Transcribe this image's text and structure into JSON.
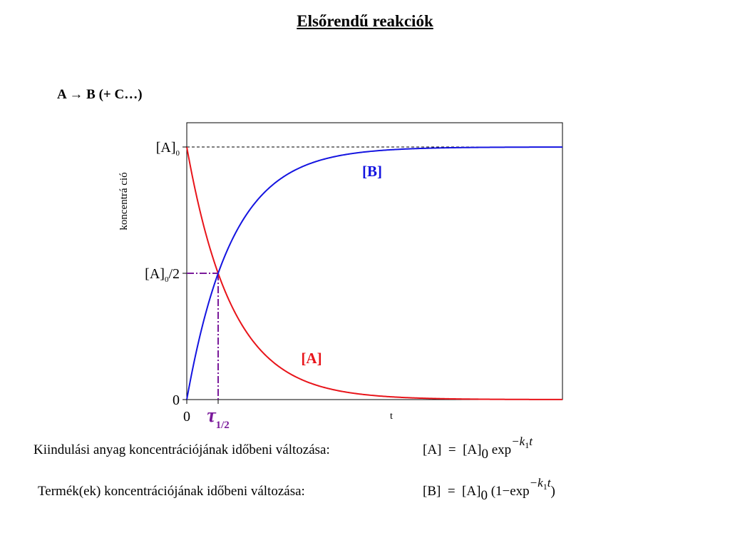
{
  "title": "Elsőrendű reakciók",
  "reaction": "A → B (+ C…)",
  "chart_data": {
    "type": "line",
    "ylabel": "koncentrá ció",
    "xlabel": "t",
    "y_ticks": [
      {
        "main": "[A]",
        "sub": "0",
        "rest": "",
        "value": 1.0
      },
      {
        "main": "[A]",
        "sub": "0",
        "rest": "/2",
        "value": 0.5
      },
      {
        "main": "0",
        "sub": "",
        "rest": "",
        "value": 0.0
      }
    ],
    "x_ticks": [
      {
        "main": "0",
        "sub": "",
        "value": 0.0
      },
      {
        "main": "τ",
        "sub": "1/2",
        "value": 0.6931
      }
    ],
    "xlim": [
      0,
      8.3
    ],
    "ylim": [
      0,
      1.1
    ],
    "k1": 1.0,
    "series": [
      {
        "name": "[A]",
        "color": "#e8141a",
        "function": "exp(-k1*t)"
      },
      {
        "name": "[B]",
        "color": "#1414e0",
        "function": "1-exp(-k1*t)"
      }
    ],
    "reference_lines": {
      "a0_dashed_color": "#000000",
      "half_life_color": "#7a1a9a"
    },
    "half_life_label_color": "#7a1a9a"
  },
  "equations": [
    {
      "label": "Kiindulási anyag koncentrációjának időbeni változása:",
      "lhs": "[A]",
      "rhs": "[A]",
      "rhs_sub": "0",
      "func": "exp",
      "open": "",
      "close": "",
      "exponent": "−k",
      "exponent_sub": "1",
      "exponent_tail": "t"
    },
    {
      "label": "Termék(ek) koncentrációjának időbeni változása:",
      "lhs": "[B]",
      "rhs": "[A]",
      "rhs_sub": "0",
      "func": "exp",
      "open": "(1−",
      "close": ")",
      "exponent": "−k",
      "exponent_sub": "1",
      "exponent_tail": "t"
    }
  ]
}
